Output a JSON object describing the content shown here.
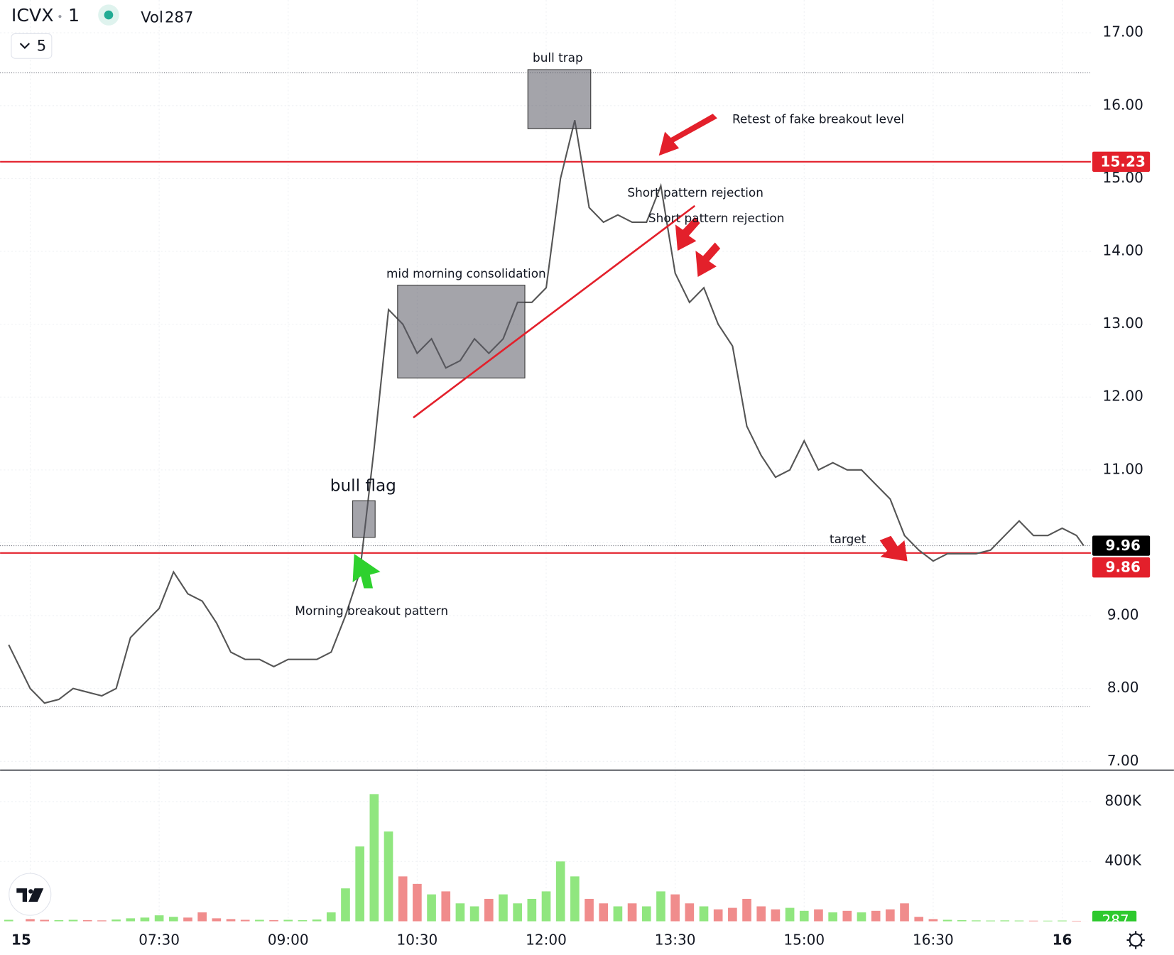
{
  "header": {
    "symbol": "ICVX",
    "interval": "1",
    "volume_label": "Vol",
    "volume": 287,
    "layout_count": "5"
  },
  "chart_data": [
    {
      "type": "line",
      "color": "#555555",
      "x": [
        345,
        360,
        370,
        380,
        390,
        400,
        410,
        420,
        430,
        440,
        450,
        460,
        470,
        480,
        490,
        500,
        510,
        520,
        530,
        540,
        550,
        560,
        570,
        580,
        590,
        600,
        610,
        620,
        630,
        640,
        650,
        660,
        670,
        680,
        690,
        700,
        710,
        720,
        730,
        740,
        750,
        760,
        770,
        780,
        790,
        800,
        810,
        820,
        830,
        840,
        850,
        860,
        870,
        880,
        890,
        900,
        910,
        920,
        930,
        940,
        950,
        960,
        970,
        980,
        990,
        1000,
        1010,
        1020,
        1030,
        1040,
        1050,
        1060,
        1070,
        1080,
        1090,
        1095
      ],
      "values": [
        8.6,
        8.0,
        7.8,
        7.85,
        8.0,
        7.95,
        7.9,
        8.0,
        8.7,
        8.9,
        9.1,
        9.6,
        9.3,
        9.2,
        8.9,
        8.5,
        8.4,
        8.4,
        8.3,
        8.4,
        8.4,
        8.4,
        8.5,
        9.0,
        9.6,
        11.3,
        13.2,
        13.0,
        12.6,
        12.8,
        12.4,
        12.5,
        12.8,
        12.6,
        12.8,
        13.3,
        13.3,
        13.5,
        15.0,
        15.8,
        14.6,
        14.4,
        14.5,
        14.4,
        14.4,
        14.9,
        13.7,
        13.3,
        13.5,
        13.0,
        12.7,
        11.6,
        11.2,
        10.9,
        11.0,
        11.4,
        11.0,
        11.1,
        11.0,
        11.0,
        10.8,
        10.6,
        10.1,
        9.9,
        9.75,
        9.85,
        9.85,
        9.85,
        9.9,
        10.1,
        10.3,
        10.1,
        10.1,
        10.2,
        10.1,
        9.96
      ],
      "xlim": [
        339,
        1100
      ],
      "xticks": [
        {
          "value": 360,
          "label": "15"
        },
        {
          "value": 450,
          "label": "07:30"
        },
        {
          "value": 540,
          "label": "09:00"
        },
        {
          "value": 630,
          "label": "10:30"
        },
        {
          "value": 720,
          "label": "12:00"
        },
        {
          "value": 810,
          "label": "13:30"
        },
        {
          "value": 900,
          "label": "15:00"
        },
        {
          "value": 990,
          "label": "16:30"
        },
        {
          "value": 1080,
          "label": "16"
        }
      ],
      "ylim": [
        6.89,
        17.45
      ],
      "yticks": [
        {
          "value": 7,
          "label": "7.00"
        },
        {
          "value": 8,
          "label": "8.00"
        },
        {
          "value": 9,
          "label": "9.00"
        },
        {
          "value": 10,
          "label": "10.00"
        },
        {
          "value": 11,
          "label": "11.00"
        },
        {
          "value": 12,
          "label": "12.00"
        },
        {
          "value": 13,
          "label": "13.00"
        },
        {
          "value": 14,
          "label": "14.00"
        },
        {
          "value": 15,
          "label": "15.00"
        },
        {
          "value": 16,
          "label": "16.00"
        },
        {
          "value": 17,
          "label": "17.00"
        }
      ],
      "grid": true,
      "price_lines": [
        {
          "value": 15.23,
          "color": "#e3202b"
        },
        {
          "value": 9.86,
          "color": "#e3202b"
        }
      ],
      "last_price": {
        "value": 9.96,
        "color": "#000000"
      },
      "dotted_levels": [
        16.45,
        7.75
      ],
      "annotations": [
        "bull trap",
        "Retest of fake breakout level",
        "Short pattern rejection",
        "Short pattern rejection",
        "mid morning consolidation",
        "bull flag",
        "Morning breakout pattern",
        "target"
      ]
    },
    {
      "type": "bar",
      "up_color": "#90e67f",
      "down_color": "#f08c8c",
      "x": [
        345,
        360,
        370,
        380,
        390,
        400,
        410,
        420,
        430,
        440,
        450,
        460,
        470,
        480,
        490,
        500,
        510,
        520,
        530,
        540,
        550,
        560,
        570,
        580,
        590,
        600,
        610,
        620,
        630,
        640,
        650,
        660,
        670,
        680,
        690,
        700,
        710,
        720,
        730,
        740,
        750,
        760,
        770,
        780,
        790,
        800,
        810,
        820,
        830,
        840,
        850,
        860,
        870,
        880,
        890,
        900,
        910,
        920,
        930,
        940,
        950,
        960,
        970,
        980,
        990,
        1000,
        1010,
        1020,
        1030,
        1040,
        1050,
        1060,
        1070,
        1080,
        1090,
        1095
      ],
      "values": [
        10000,
        15000,
        10000,
        8000,
        10000,
        8000,
        6000,
        12000,
        20000,
        25000,
        40000,
        30000,
        25000,
        60000,
        20000,
        15000,
        10000,
        10000,
        8000,
        10000,
        8000,
        12000,
        60000,
        220000,
        500000,
        850000,
        600000,
        300000,
        250000,
        180000,
        200000,
        120000,
        100000,
        150000,
        180000,
        120000,
        150000,
        200000,
        400000,
        300000,
        150000,
        120000,
        100000,
        120000,
        100000,
        200000,
        180000,
        120000,
        100000,
        80000,
        90000,
        150000,
        100000,
        80000,
        90000,
        70000,
        80000,
        60000,
        70000,
        60000,
        70000,
        80000,
        120000,
        30000,
        15000,
        10000,
        8000,
        6000,
        5000,
        6000,
        5000,
        4000,
        4000,
        5000,
        3000,
        287
      ],
      "ylim": [
        0,
        1005000
      ],
      "yticks": [
        {
          "value": 400000,
          "label": "400K"
        },
        {
          "value": 800000,
          "label": "800K"
        }
      ],
      "grid": true
    }
  ]
}
